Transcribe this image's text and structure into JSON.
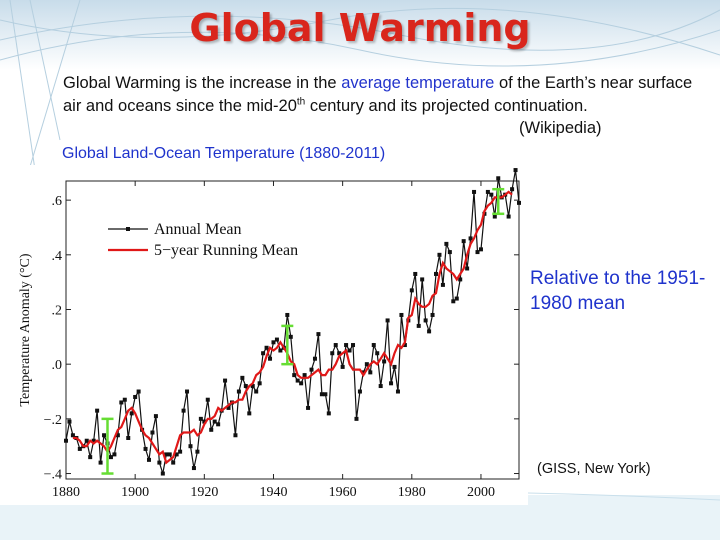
{
  "slide": {
    "title": "Global Warming",
    "intro_before": "Global Warming is the increase in the ",
    "intro_highlight": "average temperature",
    "intro_middle": " of the Earth’s near surface air and oceans since the mid-20",
    "intro_sup": "th",
    "intro_after": " century and its projected continuation.",
    "citation": "(Wikipedia)",
    "chart_caption": "Global Land-Ocean Temperature (1880-2011)",
    "relative_note": "Relative to the 1951-1980 mean",
    "source_note": "(GISS, New York)"
  },
  "colors": {
    "title": "#d9261c",
    "highlight_text": "#1f33cc",
    "annual_line": "#111111",
    "running_line": "#e01818",
    "error_bars": "#66dd33"
  },
  "chart_data": {
    "type": "line",
    "title": "Global Land-Ocean Temperature (1880-2011)",
    "xlabel": "",
    "ylabel": "Temperature Anomaly (°C)",
    "xlim": [
      1880,
      2011
    ],
    "ylim": [
      -0.42,
      0.67
    ],
    "x_ticks": [
      1880,
      1900,
      1920,
      1940,
      1960,
      1980,
      2000
    ],
    "x_tick_labels": [
      "1880",
      "1900",
      "1920",
      "1940",
      "1960",
      "1980",
      "2000"
    ],
    "y_ticks": [
      -0.4,
      -0.2,
      0.0,
      0.2,
      0.4,
      0.6
    ],
    "y_tick_labels": [
      "−.4",
      "−.2",
      ".0",
      ".2",
      ".4",
      ".6"
    ],
    "legend": {
      "position": "top-left",
      "entries": [
        "Annual Mean",
        "5−year Running Mean"
      ]
    },
    "grid": false,
    "x": [
      1880,
      1881,
      1882,
      1883,
      1884,
      1885,
      1886,
      1887,
      1888,
      1889,
      1890,
      1891,
      1892,
      1893,
      1894,
      1895,
      1896,
      1897,
      1898,
      1899,
      1900,
      1901,
      1902,
      1903,
      1904,
      1905,
      1906,
      1907,
      1908,
      1909,
      1910,
      1911,
      1912,
      1913,
      1914,
      1915,
      1916,
      1917,
      1918,
      1919,
      1920,
      1921,
      1922,
      1923,
      1924,
      1925,
      1926,
      1927,
      1928,
      1929,
      1930,
      1931,
      1932,
      1933,
      1934,
      1935,
      1936,
      1937,
      1938,
      1939,
      1940,
      1941,
      1942,
      1943,
      1944,
      1945,
      1946,
      1947,
      1948,
      1949,
      1950,
      1951,
      1952,
      1953,
      1954,
      1955,
      1956,
      1957,
      1958,
      1959,
      1960,
      1961,
      1962,
      1963,
      1964,
      1965,
      1966,
      1967,
      1968,
      1969,
      1970,
      1971,
      1972,
      1973,
      1974,
      1975,
      1976,
      1977,
      1978,
      1979,
      1980,
      1981,
      1982,
      1983,
      1984,
      1985,
      1986,
      1987,
      1988,
      1989,
      1990,
      1991,
      1992,
      1993,
      1994,
      1995,
      1996,
      1997,
      1998,
      1999,
      2000,
      2001,
      2002,
      2003,
      2004,
      2005,
      2006,
      2007,
      2008,
      2009,
      2010,
      2011
    ],
    "series": [
      {
        "name": "Annual Mean",
        "values": [
          -0.28,
          -0.21,
          -0.26,
          -0.27,
          -0.31,
          -0.3,
          -0.28,
          -0.34,
          -0.28,
          -0.17,
          -0.36,
          -0.26,
          -0.29,
          -0.34,
          -0.33,
          -0.26,
          -0.14,
          -0.13,
          -0.27,
          -0.18,
          -0.12,
          -0.1,
          -0.24,
          -0.31,
          -0.35,
          -0.25,
          -0.19,
          -0.36,
          -0.4,
          -0.33,
          -0.33,
          -0.36,
          -0.33,
          -0.32,
          -0.17,
          -0.1,
          -0.3,
          -0.38,
          -0.32,
          -0.2,
          -0.21,
          -0.13,
          -0.24,
          -0.21,
          -0.22,
          -0.17,
          -0.06,
          -0.16,
          -0.14,
          -0.26,
          -0.1,
          -0.05,
          -0.08,
          -0.18,
          -0.08,
          -0.1,
          -0.07,
          0.04,
          0.06,
          0.02,
          0.08,
          0.09,
          0.05,
          0.06,
          0.18,
          0.1,
          -0.04,
          -0.06,
          -0.07,
          -0.04,
          -0.16,
          -0.02,
          0.02,
          0.11,
          -0.11,
          -0.11,
          -0.18,
          0.04,
          0.07,
          0.04,
          -0.01,
          0.07,
          0.05,
          0.07,
          -0.2,
          -0.1,
          -0.03,
          0.0,
          -0.03,
          0.07,
          0.04,
          -0.08,
          0.01,
          0.16,
          -0.07,
          -0.01,
          -0.1,
          0.18,
          0.07,
          0.16,
          0.27,
          0.33,
          0.14,
          0.31,
          0.16,
          0.12,
          0.18,
          0.33,
          0.4,
          0.29,
          0.44,
          0.41,
          0.23,
          0.24,
          0.31,
          0.45,
          0.35,
          0.46,
          0.63,
          0.41,
          0.42,
          0.55,
          0.63,
          0.62,
          0.54,
          0.68,
          0.61,
          0.62,
          0.54,
          0.64,
          0.71,
          0.59
        ]
      },
      {
        "name": "5−year Running Mean",
        "values": [
          null,
          null,
          -0.27,
          -0.27,
          -0.28,
          -0.3,
          -0.3,
          -0.28,
          -0.29,
          -0.28,
          -0.29,
          -0.3,
          -0.32,
          -0.3,
          -0.27,
          -0.24,
          -0.23,
          -0.2,
          -0.17,
          -0.16,
          -0.18,
          -0.21,
          -0.24,
          -0.26,
          -0.27,
          -0.29,
          -0.31,
          -0.33,
          -0.32,
          -0.36,
          -0.35,
          -0.34,
          -0.3,
          -0.26,
          -0.25,
          -0.25,
          -0.25,
          -0.24,
          -0.26,
          -0.25,
          -0.22,
          -0.2,
          -0.2,
          -0.19,
          -0.16,
          -0.17,
          -0.16,
          -0.15,
          -0.14,
          -0.14,
          -0.13,
          -0.13,
          -0.1,
          -0.08,
          -0.07,
          -0.04,
          -0.03,
          -0.01,
          0.03,
          0.06,
          0.05,
          0.06,
          0.08,
          0.06,
          0.04,
          0.01,
          0.0,
          -0.04,
          -0.05,
          -0.05,
          -0.05,
          -0.04,
          -0.03,
          -0.02,
          -0.04,
          -0.04,
          -0.02,
          -0.02,
          0.0,
          0.03,
          0.04,
          0.05,
          0.0,
          -0.02,
          -0.02,
          -0.02,
          -0.04,
          -0.02,
          0.0,
          0.01,
          0.0,
          0.02,
          0.04,
          0.02,
          0.0,
          0.04,
          0.07,
          0.06,
          0.08,
          0.17,
          0.18,
          0.24,
          0.22,
          0.21,
          0.21,
          0.22,
          0.25,
          0.26,
          0.33,
          0.37,
          0.35,
          0.34,
          0.33,
          0.31,
          0.33,
          0.35,
          0.4,
          0.44,
          0.46,
          0.49,
          0.51,
          0.56,
          0.58,
          0.59,
          0.61,
          0.61,
          0.61,
          0.62,
          0.63,
          0.62,
          null,
          null
        ]
      }
    ],
    "error_bars": [
      {
        "x": 1892,
        "low": -0.4,
        "high": -0.2
      },
      {
        "x": 1944,
        "low": 0.0,
        "high": 0.14
      },
      {
        "x": 2005,
        "low": 0.55,
        "high": 0.64
      }
    ]
  }
}
